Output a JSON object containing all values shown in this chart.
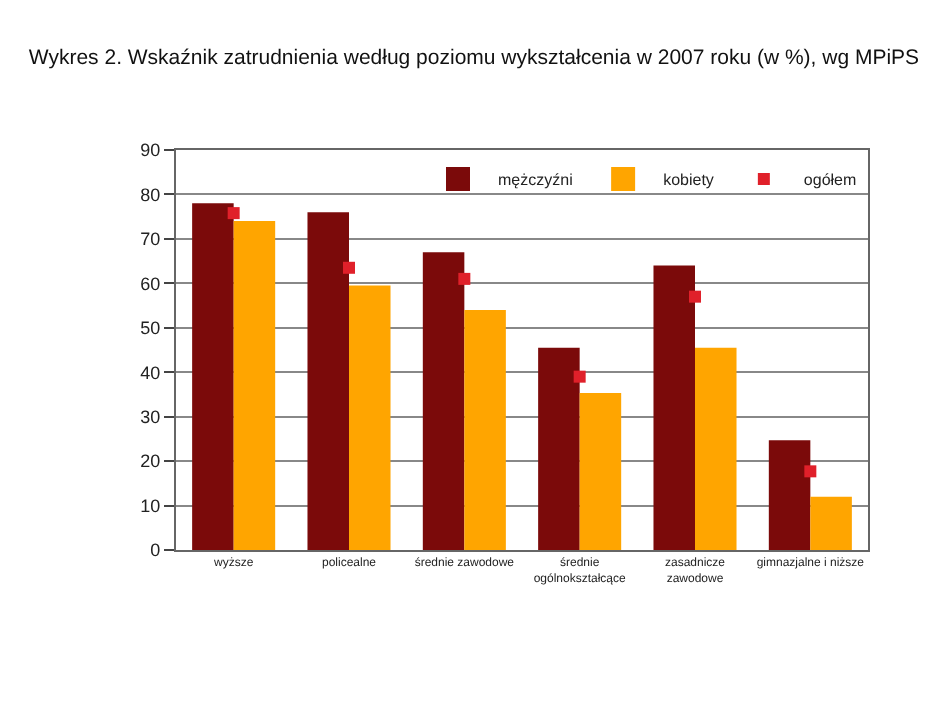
{
  "chart_data": {
    "type": "bar",
    "title": "Wykres 2. Wskaźnik zatrudnienia według poziomu wykształcenia w 2007 roku (w %), wg MPiPS",
    "categories": [
      "wyższe",
      "policealne",
      "średnie zawodowe",
      "średnie\nogólnokształcące",
      "zasadnicze\nzawodowe",
      "gimnazjalne i niższe"
    ],
    "series": [
      {
        "name": "mężczyźni",
        "color": "#7b0a0a",
        "values": [
          78,
          76,
          67,
          45.5,
          64,
          24.7
        ]
      },
      {
        "name": "kobiety",
        "color": "#ffa500",
        "values": [
          74,
          59.5,
          54,
          35.3,
          45.5,
          12
        ]
      },
      {
        "name": "ogółem",
        "type": "scatter",
        "color": "#e0202a",
        "marker": "square",
        "values": [
          75.8,
          63.5,
          61,
          39,
          57,
          17.7
        ]
      }
    ],
    "ylim": [
      0,
      90
    ],
    "yticks": [
      0,
      10,
      20,
      30,
      40,
      50,
      60,
      70,
      80,
      90
    ],
    "grid": "y",
    "legend": "top right"
  }
}
